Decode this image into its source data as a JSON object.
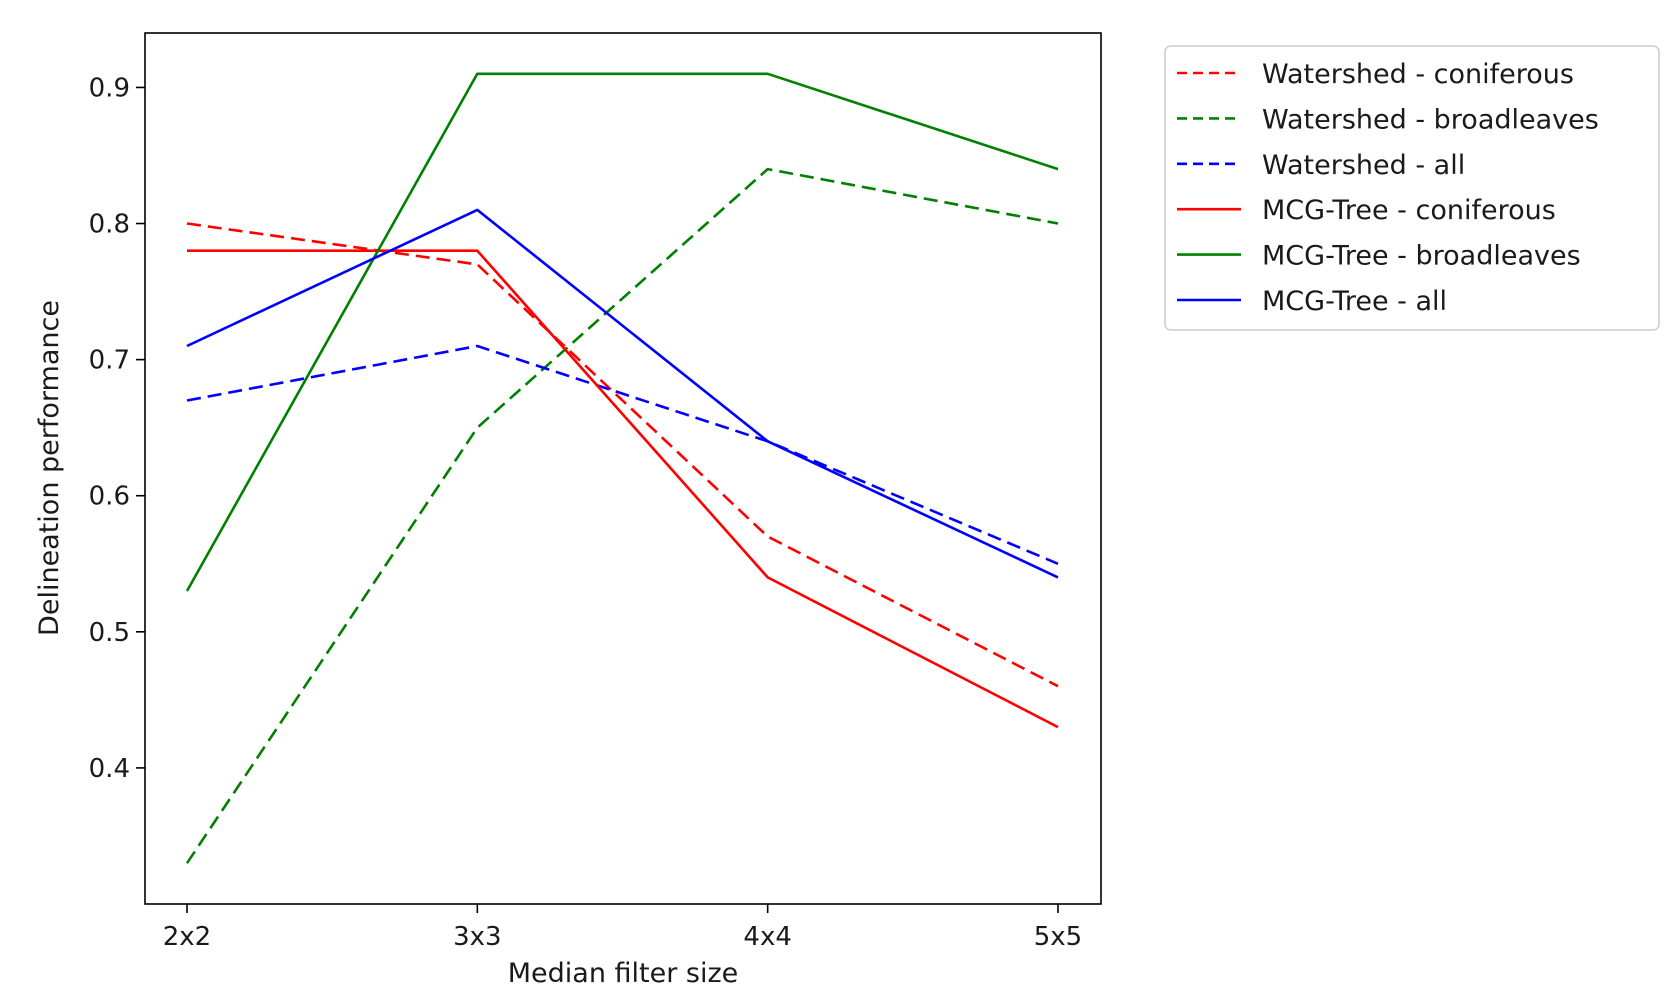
{
  "chart_data": {
    "type": "line",
    "title": "",
    "xlabel": "Median filter size",
    "ylabel": "Delineation performance",
    "categories": [
      "2x2",
      "3x3",
      "4x4",
      "5x5"
    ],
    "ylim": [
      0.3,
      0.94
    ],
    "yticks": [
      "0.4",
      "0.5",
      "0.6",
      "0.7",
      "0.8",
      "0.9"
    ],
    "grid": false,
    "legend_position": "outside-top-right",
    "series": [
      {
        "name": "Watershed - coniferous",
        "color": "#ff0000",
        "style": "dashed",
        "values": [
          0.8,
          0.77,
          0.57,
          0.46
        ]
      },
      {
        "name": "Watershed - broadleaves",
        "color": "#008000",
        "style": "dashed",
        "values": [
          0.33,
          0.65,
          0.84,
          0.8
        ]
      },
      {
        "name": "Watershed - all",
        "color": "#0000ff",
        "style": "dashed",
        "values": [
          0.67,
          0.71,
          0.64,
          0.55
        ]
      },
      {
        "name": "MCG-Tree - coniferous",
        "color": "#ff0000",
        "style": "solid",
        "values": [
          0.78,
          0.78,
          0.54,
          0.43
        ]
      },
      {
        "name": "MCG-Tree - broadleaves",
        "color": "#008000",
        "style": "solid",
        "values": [
          0.53,
          0.91,
          0.91,
          0.84
        ]
      },
      {
        "name": "MCG-Tree - all",
        "color": "#0000ff",
        "style": "solid",
        "values": [
          0.71,
          0.81,
          0.64,
          0.54
        ]
      }
    ]
  }
}
